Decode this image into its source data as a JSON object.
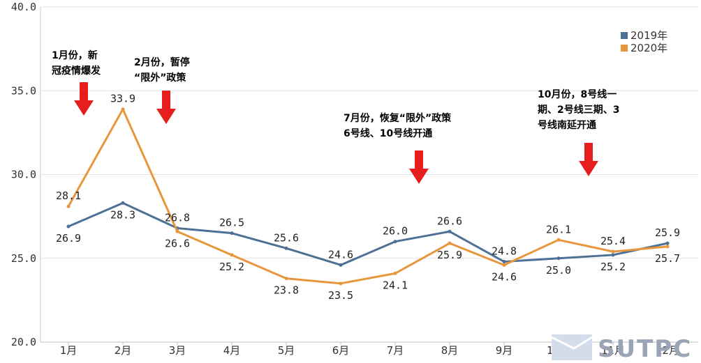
{
  "chart_data": {
    "type": "line",
    "categories": [
      "1月",
      "2月",
      "3月",
      "4月",
      "5月",
      "6月",
      "7月",
      "8月",
      "9月",
      "10月",
      "11月",
      "12月"
    ],
    "ylim": [
      20.0,
      40.0
    ],
    "yticks": [
      "20.0",
      "25.0",
      "30.0",
      "35.0",
      "40.0"
    ],
    "grid": true,
    "legend_position": "top-right",
    "series": [
      {
        "name": "2019年",
        "color": "#4d7196",
        "values": [
          26.9,
          28.3,
          26.8,
          26.5,
          25.6,
          24.6,
          26.0,
          26.6,
          24.8,
          25.0,
          25.2,
          25.9
        ],
        "labels": [
          "26.9",
          "28.3",
          "26.8",
          "26.5",
          "25.6",
          "24.6",
          "26.0",
          "26.6",
          "24.8",
          "25.0",
          "25.2",
          "25.9"
        ]
      },
      {
        "name": "2020年",
        "color": "#e8963c",
        "values": [
          28.1,
          33.9,
          26.6,
          25.2,
          23.8,
          23.5,
          24.1,
          25.9,
          24.6,
          26.1,
          25.4,
          25.7
        ],
        "labels": [
          "28.1",
          "33.9",
          "26.6",
          "25.2",
          "23.8",
          "23.5",
          "24.1",
          "25.9",
          "24.6",
          "26.1",
          "25.4",
          "25.7"
        ]
      }
    ],
    "annotations": [
      {
        "lines": [
          "1月份，新",
          "冠疫情爆发"
        ]
      },
      {
        "lines": [
          "2月份，暂停",
          "“限外”政策"
        ]
      },
      {
        "lines": [
          "7月份，恢复“限外”政策",
          "6号线、10号线开通"
        ]
      },
      {
        "lines": [
          "10月份，8号线一",
          "期、2号线三期、3",
          "号线南延开通"
        ]
      }
    ],
    "arrow_color": "#e61e1e"
  },
  "watermark": {
    "text": "SUTPC"
  }
}
